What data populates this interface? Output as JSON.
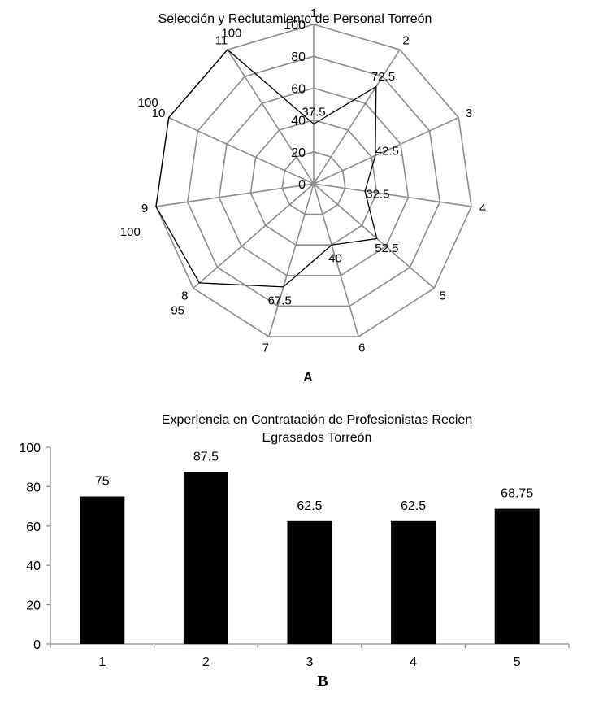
{
  "chart_data": [
    {
      "type": "radar",
      "title": "Selección y Reclutamiento de Personal Torreón",
      "categories": [
        "1",
        "2",
        "3",
        "4",
        "5",
        "6",
        "7",
        "8",
        "9",
        "10",
        "11"
      ],
      "values": [
        37.5,
        72.5,
        42.5,
        32.5,
        52.5,
        40,
        67.5,
        95,
        100,
        100,
        100
      ],
      "value_labels": [
        "37.5",
        "72.5",
        "42.5",
        "32.5",
        "52.5",
        "40",
        "67.5",
        "95",
        "100",
        "100",
        "100"
      ],
      "rlim": [
        0,
        100
      ],
      "ticks": [
        "0",
        "20",
        "40",
        "60",
        "80",
        "100"
      ],
      "line_color": "#000000",
      "grid_color": "#8c8c8c",
      "panel_label": "A"
    },
    {
      "type": "bar",
      "title_lines": [
        "Experiencia en Contratación de Profesionistas Recien",
        "Egrasados Torreón"
      ],
      "categories": [
        "1",
        "2",
        "3",
        "4",
        "5"
      ],
      "values": [
        75,
        87.5,
        62.5,
        62.5,
        68.75
      ],
      "value_labels": [
        "75",
        "87.5",
        "62.5",
        "62.5",
        "68.75"
      ],
      "ylim": [
        0,
        100
      ],
      "yticks": [
        "0",
        "20",
        "40",
        "60",
        "80",
        "100"
      ],
      "bar_color": "#000000",
      "panel_label": "B"
    }
  ]
}
